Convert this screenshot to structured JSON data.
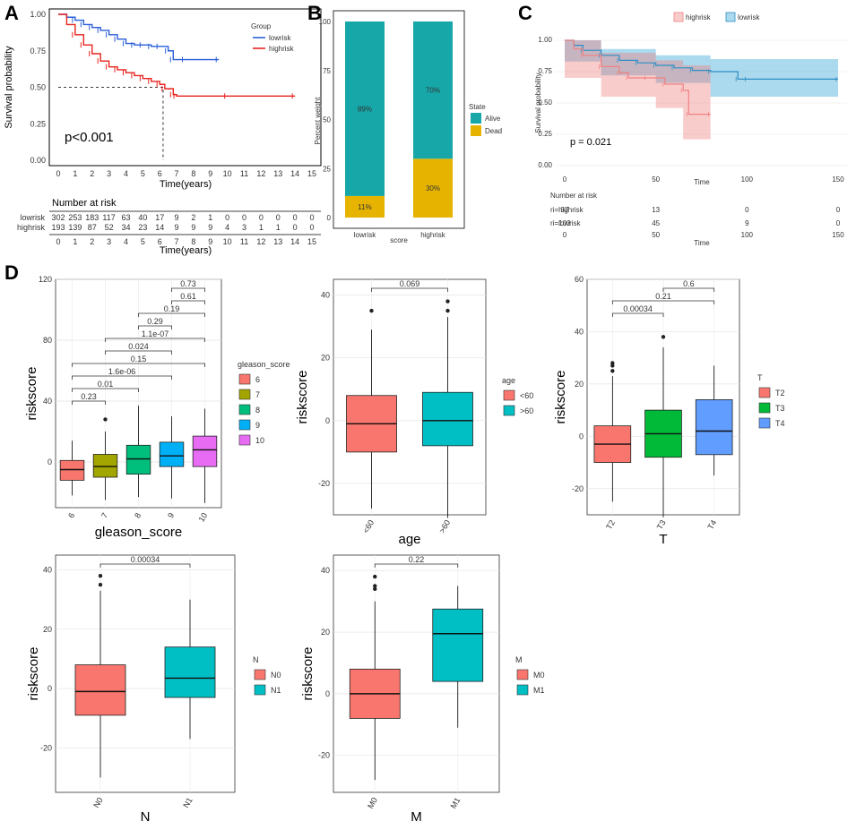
{
  "panel_labels": [
    "A",
    "B",
    "C",
    "D"
  ],
  "chart_data": [
    {
      "id": "A",
      "type": "line",
      "subtype": "kaplan-meier",
      "legend_title": "Group",
      "legend": [
        "lowrisk",
        "highrisk"
      ],
      "colors": {
        "lowrisk": "#2b5fd9",
        "highrisk": "#e8241e"
      },
      "ylabel": "Survival probability",
      "xlabel": "Time(years)",
      "ylim": [
        0,
        1
      ],
      "xlim": [
        0,
        15
      ],
      "yticks": [
        "0.00",
        "0.25",
        "0.50",
        "0.75",
        "1.00"
      ],
      "xticks": [
        "0",
        "1",
        "2",
        "3",
        "4",
        "5",
        "6",
        "7",
        "8",
        "9",
        "10",
        "11",
        "12",
        "13",
        "14",
        "15"
      ],
      "annotation": "p<0.001",
      "median_survival_highrisk": 6.2,
      "series": [
        {
          "name": "lowrisk",
          "x": [
            0,
            0.5,
            1,
            1.5,
            2,
            2.5,
            3,
            3.5,
            4,
            4.5,
            5,
            5.5,
            6,
            6.5,
            6.8,
            7.5,
            9.5
          ],
          "y": [
            1.0,
            0.98,
            0.96,
            0.93,
            0.91,
            0.89,
            0.86,
            0.83,
            0.8,
            0.79,
            0.79,
            0.78,
            0.78,
            0.75,
            0.69,
            0.69,
            0.69
          ]
        },
        {
          "name": "highrisk",
          "x": [
            0,
            0.5,
            1,
            1.5,
            2,
            2.5,
            3,
            3.5,
            4,
            4.5,
            5,
            5.5,
            6,
            6.3,
            6.8,
            7,
            10,
            14
          ],
          "y": [
            1.0,
            0.93,
            0.86,
            0.79,
            0.73,
            0.68,
            0.64,
            0.62,
            0.6,
            0.58,
            0.56,
            0.54,
            0.52,
            0.49,
            0.45,
            0.44,
            0.44,
            0.44
          ]
        }
      ],
      "risk_table": {
        "title": "Number at risk",
        "xlabel": "Time(years)",
        "times": [
          "0",
          "1",
          "2",
          "3",
          "4",
          "5",
          "6",
          "7",
          "8",
          "9",
          "10",
          "11",
          "12",
          "13",
          "14",
          "15"
        ],
        "rows": [
          {
            "name": "lowrisk",
            "values": [
              "302",
              "253",
              "183",
              "117",
              "63",
              "40",
              "17",
              "9",
              "2",
              "1",
              "0",
              "0",
              "0",
              "0",
              "0",
              "0"
            ]
          },
          {
            "name": "highrisk",
            "values": [
              "193",
              "139",
              "87",
              "52",
              "34",
              "23",
              "14",
              "9",
              "9",
              "9",
              "4",
              "3",
              "1",
              "1",
              "0",
              "0"
            ]
          }
        ]
      }
    },
    {
      "id": "B",
      "type": "bar",
      "subtype": "stacked-percent",
      "categories": [
        "lowrisk",
        "highrisk"
      ],
      "series": [
        {
          "name": "Dead",
          "color": "#e6b400",
          "values": [
            11,
            30
          ],
          "labels": [
            "11%",
            "30%"
          ]
        },
        {
          "name": "Alive",
          "color": "#17a7a8",
          "values": [
            89,
            70
          ],
          "labels": [
            "89%",
            "70%"
          ]
        }
      ],
      "legend_title": "State",
      "legend": [
        "Alive",
        "Dead"
      ],
      "ylabel": "Percent weight",
      "xlabel": "score",
      "yticks": [
        "0",
        "25",
        "50",
        "75",
        "100"
      ],
      "ylim": [
        0,
        100
      ]
    },
    {
      "id": "C",
      "type": "line",
      "subtype": "kaplan-meier",
      "legend": [
        "highrisk",
        "lowrisk"
      ],
      "colors": {
        "highrisk": "#f08080",
        "lowrisk": "#2d8ec4"
      },
      "ylabel": "Survival probability",
      "xlabel": "Time",
      "xlim": [
        0,
        150
      ],
      "ylim": [
        0,
        1
      ],
      "yticks": [
        "0.00",
        "0.25",
        "0.50",
        "0.75",
        "1.00"
      ],
      "xticks": [
        "0",
        "50",
        "100",
        "150"
      ],
      "annotation": "p = 0.021",
      "series": [
        {
          "name": "lowrisk",
          "x": [
            0,
            5,
            10,
            20,
            30,
            40,
            50,
            60,
            70,
            80,
            95,
            100,
            150
          ],
          "y": [
            1.0,
            0.96,
            0.92,
            0.88,
            0.84,
            0.82,
            0.8,
            0.78,
            0.76,
            0.75,
            0.69,
            0.69,
            0.69
          ]
        },
        {
          "name": "highrisk",
          "x": [
            0,
            5,
            10,
            20,
            30,
            35,
            45,
            55,
            65,
            68,
            80
          ],
          "y": [
            1.0,
            0.93,
            0.88,
            0.79,
            0.74,
            0.7,
            0.7,
            0.65,
            0.6,
            0.41,
            0.41
          ]
        }
      ],
      "bands": [
        {
          "name": "lowrisk",
          "x": [
            0,
            20,
            50,
            80,
            95,
            100,
            150
          ],
          "lo": [
            1.0,
            0.83,
            0.72,
            0.66,
            0.55,
            0.55,
            0.55
          ],
          "hi": [
            1.0,
            0.93,
            0.88,
            0.85,
            0.85,
            0.85,
            0.85
          ]
        },
        {
          "name": "highrisk",
          "x": [
            0,
            20,
            50,
            65,
            68,
            80
          ],
          "lo": [
            1.0,
            0.7,
            0.55,
            0.46,
            0.21,
            0.21
          ],
          "hi": [
            1.0,
            0.9,
            0.84,
            0.8,
            0.8,
            0.8
          ]
        }
      ],
      "risk_table": {
        "title": "Number at risk",
        "xlabel": "Time",
        "times": [
          "0",
          "50",
          "100",
          "150"
        ],
        "rows": [
          {
            "name": "ri=highrisk",
            "values": [
              "37",
              "13",
              "0",
              "0"
            ]
          },
          {
            "name": "ri=lowrisk",
            "values": [
              "103",
              "45",
              "9",
              "0"
            ]
          }
        ]
      }
    },
    {
      "id": "D1",
      "type": "boxplot",
      "xlabel": "gleason_score",
      "ylabel": "riskscore",
      "ylim": [
        -30,
        120
      ],
      "yticks": [
        "0",
        "40",
        "80",
        "120"
      ],
      "legend_title": "gleason_score",
      "categories": [
        "6",
        "7",
        "8",
        "9",
        "10"
      ],
      "colors": [
        "#f8766d",
        "#a3a500",
        "#00bf7d",
        "#00b0f6",
        "#e76bf3"
      ],
      "boxes": [
        {
          "min": -22,
          "q1": -12,
          "median": -5,
          "q3": 1,
          "max": 14,
          "outliers": []
        },
        {
          "min": -25,
          "q1": -10,
          "median": -3,
          "q3": 5,
          "max": 20,
          "outliers": [
            28
          ]
        },
        {
          "min": -23,
          "q1": -8,
          "median": 2,
          "q3": 11,
          "max": 37,
          "outliers": []
        },
        {
          "min": -24,
          "q1": -3,
          "median": 4,
          "q3": 13,
          "max": 30,
          "outliers": []
        },
        {
          "min": -27,
          "q1": -3,
          "median": 8,
          "q3": 17,
          "max": 35,
          "outliers": []
        }
      ],
      "comparisons": [
        {
          "from": 0,
          "to": 1,
          "label": "0.23"
        },
        {
          "from": 0,
          "to": 2,
          "label": "0.01"
        },
        {
          "from": 0,
          "to": 3,
          "label": "1.6e-06"
        },
        {
          "from": 0,
          "to": 4,
          "label": "0.15"
        },
        {
          "from": 1,
          "to": 3,
          "label": "0.024"
        },
        {
          "from": 1,
          "to": 4,
          "label": "1.1e-07"
        },
        {
          "from": 2,
          "to": 3,
          "label": "0.29"
        },
        {
          "from": 2,
          "to": 4,
          "label": "0.19"
        },
        {
          "from": 3,
          "to": 4,
          "label": "0.61"
        },
        {
          "from": 3,
          "to": 4,
          "label": "0.73"
        }
      ]
    },
    {
      "id": "D2",
      "type": "boxplot",
      "xlabel": "age",
      "ylabel": "riskscore",
      "ylim": [
        -30,
        45
      ],
      "yticks": [
        "-20",
        "0",
        "20",
        "40"
      ],
      "legend_title": "age",
      "categories": [
        "<60",
        ">60"
      ],
      "colors": [
        "#f8766d",
        "#00bfc4"
      ],
      "boxes": [
        {
          "min": -28,
          "q1": -10,
          "median": -1,
          "q3": 8,
          "max": 29,
          "outliers": [
            35
          ]
        },
        {
          "min": -31,
          "q1": -8,
          "median": 0,
          "q3": 9,
          "max": 33,
          "outliers": [
            35,
            38
          ]
        }
      ],
      "comparisons": [
        {
          "from": 0,
          "to": 1,
          "label": "0.069"
        }
      ]
    },
    {
      "id": "D3",
      "type": "boxplot",
      "xlabel": "T",
      "ylabel": "riskscore",
      "ylim": [
        -30,
        60
      ],
      "yticks": [
        "-20",
        "0",
        "20",
        "40",
        "60"
      ],
      "legend_title": "T",
      "categories": [
        "T2",
        "T3",
        "T4"
      ],
      "colors": [
        "#f8766d",
        "#00ba38",
        "#619cff"
      ],
      "boxes": [
        {
          "min": -25,
          "q1": -10,
          "median": -3,
          "q3": 4,
          "max": 23,
          "outliers": [
            25,
            27,
            28
          ]
        },
        {
          "min": -31,
          "q1": -8,
          "median": 1,
          "q3": 10,
          "max": 34,
          "outliers": [
            38
          ]
        },
        {
          "min": -15,
          "q1": -7,
          "median": 2,
          "q3": 14,
          "max": 27,
          "outliers": []
        }
      ],
      "comparisons": [
        {
          "from": 0,
          "to": 1,
          "label": "0.00034"
        },
        {
          "from": 0,
          "to": 2,
          "label": "0.21"
        },
        {
          "from": 1,
          "to": 2,
          "label": "0.6"
        }
      ]
    },
    {
      "id": "D4",
      "type": "boxplot",
      "xlabel": "N",
      "ylabel": "riskscore",
      "ylim": [
        -35,
        45
      ],
      "yticks": [
        "-20",
        "0",
        "20",
        "40"
      ],
      "legend_title": "N",
      "categories": [
        "N0",
        "N1"
      ],
      "colors": [
        "#f8766d",
        "#00bfc4"
      ],
      "boxes": [
        {
          "min": -30,
          "q1": -9,
          "median": -1,
          "q3": 8,
          "max": 33,
          "outliers": [
            35,
            38
          ]
        },
        {
          "min": -17,
          "q1": -3,
          "median": 3.5,
          "q3": 14,
          "max": 30,
          "outliers": []
        }
      ],
      "comparisons": [
        {
          "from": 0,
          "to": 1,
          "label": "0.00034"
        }
      ]
    },
    {
      "id": "D5",
      "type": "boxplot",
      "xlabel": "M",
      "ylabel": "riskscore",
      "ylim": [
        -32,
        45
      ],
      "yticks": [
        "-20",
        "0",
        "20",
        "40"
      ],
      "legend_title": "M",
      "categories": [
        "M0",
        "M1"
      ],
      "colors": [
        "#f8766d",
        "#00bfc4"
      ],
      "boxes": [
        {
          "min": -28,
          "q1": -8,
          "median": 0,
          "q3": 8,
          "max": 30,
          "outliers": [
            34,
            35,
            38
          ]
        },
        {
          "min": -11,
          "q1": 4,
          "median": 19.5,
          "q3": 27.5,
          "max": 35,
          "outliers": []
        }
      ],
      "comparisons": [
        {
          "from": 0,
          "to": 1,
          "label": "0.22"
        }
      ]
    }
  ]
}
